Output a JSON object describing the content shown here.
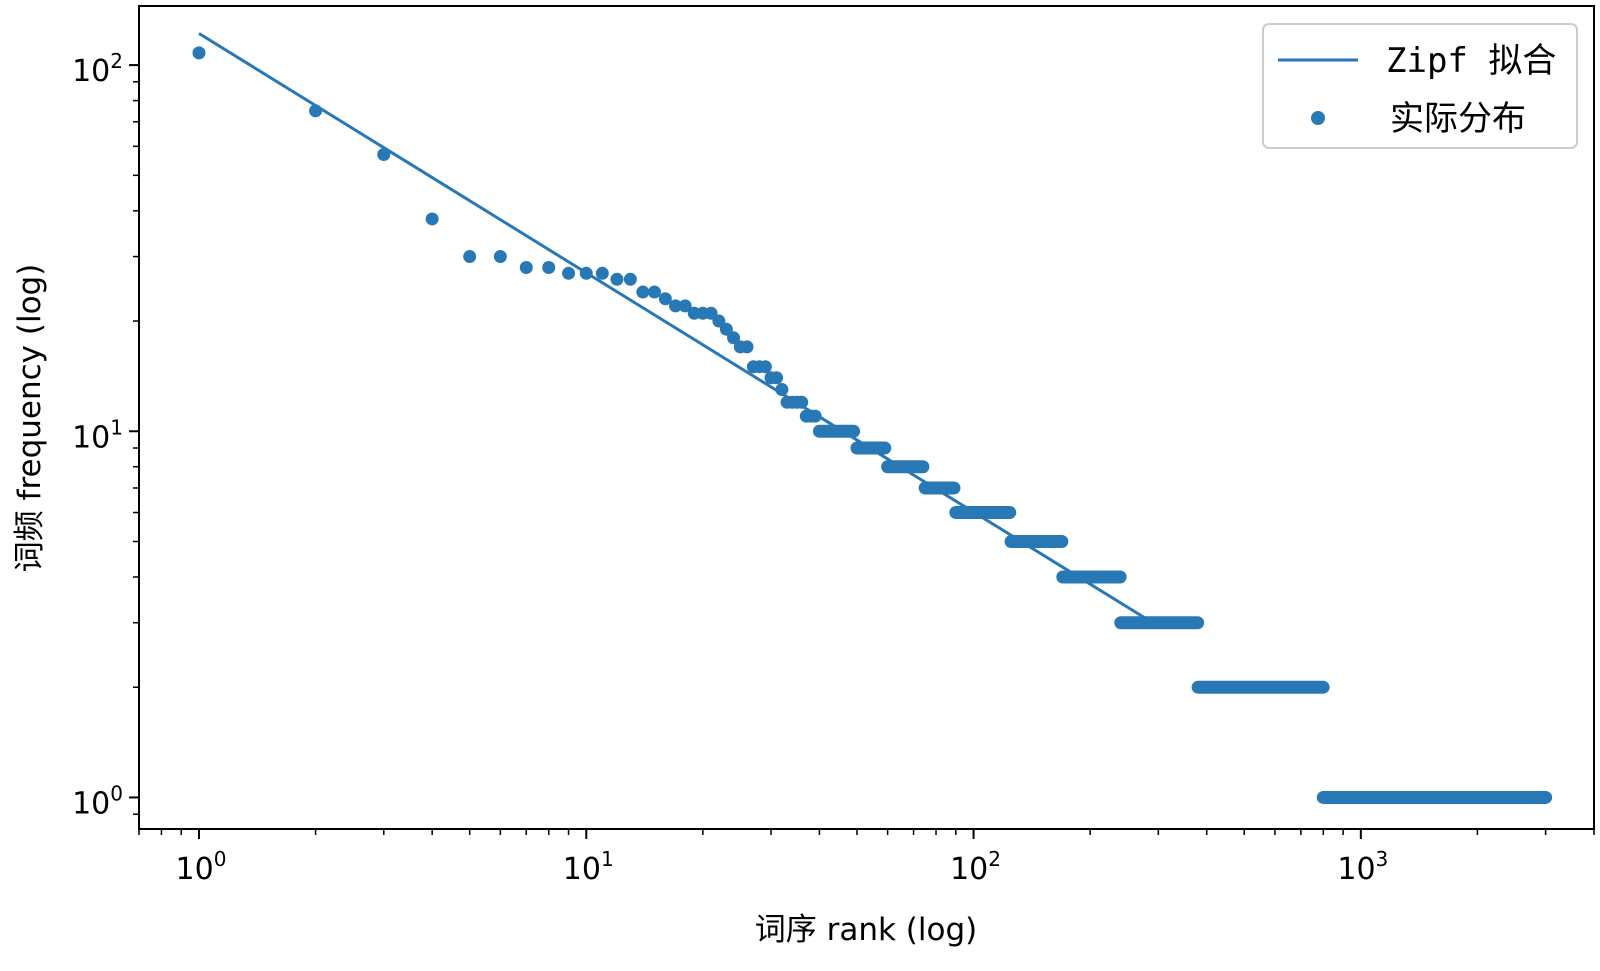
{
  "chart_data": {
    "type": "scatter",
    "xscale": "log",
    "yscale": "log",
    "xlim": [
      0.7,
      4000
    ],
    "ylim": [
      0.82,
      145
    ],
    "xlabel": "词序 rank (log)",
    "ylabel": "词频 frequency (log)",
    "xticks": [
      {
        "base": "10",
        "exp": "0",
        "value": 1
      },
      {
        "base": "10",
        "exp": "1",
        "value": 10
      },
      {
        "base": "10",
        "exp": "2",
        "value": 100
      },
      {
        "base": "10",
        "exp": "3",
        "value": 1000
      }
    ],
    "yticks": [
      {
        "base": "10",
        "exp": "0",
        "value": 1
      },
      {
        "base": "10",
        "exp": "1",
        "value": 10
      },
      {
        "base": "10",
        "exp": "2",
        "value": 100
      }
    ],
    "legend": {
      "placement": "top-right",
      "fit_label": "Zipf 拟合",
      "scatter_label": "实际分布"
    },
    "color": "#2878b5",
    "fit_line": {
      "x": [
        1,
        290
      ],
      "y": [
        122,
        3
      ]
    },
    "points": [
      [
        1,
        108
      ],
      [
        2,
        75
      ],
      [
        3,
        57
      ],
      [
        4,
        38
      ],
      [
        5,
        30
      ],
      [
        6,
        30
      ],
      [
        7,
        28
      ],
      [
        8,
        28
      ],
      [
        9,
        27
      ],
      [
        10,
        27
      ],
      [
        11,
        27
      ],
      [
        12,
        26
      ],
      [
        13,
        26
      ],
      [
        14,
        24
      ],
      [
        15,
        24
      ],
      [
        16,
        23
      ],
      [
        17,
        22
      ],
      [
        18,
        22
      ],
      [
        19,
        21
      ],
      [
        20,
        21
      ],
      [
        21,
        21
      ],
      [
        22,
        20
      ],
      [
        23,
        19
      ],
      [
        24,
        18
      ],
      [
        25,
        17
      ],
      [
        26,
        17
      ],
      [
        27,
        15
      ],
      [
        28,
        15
      ],
      [
        29,
        15
      ],
      [
        30,
        14
      ],
      [
        31,
        14
      ],
      [
        32,
        13
      ],
      [
        33,
        12
      ],
      [
        34,
        12
      ],
      [
        35,
        12
      ],
      [
        36,
        12
      ],
      [
        37,
        11
      ],
      [
        38,
        11
      ],
      [
        39,
        11
      ]
    ],
    "runs": [
      {
        "y": 10,
        "x_start": 40,
        "x_end": 49
      },
      {
        "y": 9,
        "x_start": 50,
        "x_end": 59
      },
      {
        "y": 8,
        "x_start": 60,
        "x_end": 74
      },
      {
        "y": 7,
        "x_start": 75,
        "x_end": 89
      },
      {
        "y": 6,
        "x_start": 90,
        "x_end": 124
      },
      {
        "y": 5,
        "x_start": 125,
        "x_end": 169
      },
      {
        "y": 4,
        "x_start": 170,
        "x_end": 239
      },
      {
        "y": 3,
        "x_start": 240,
        "x_end": 379
      },
      {
        "y": 2,
        "x_start": 380,
        "x_end": 799
      },
      {
        "y": 1,
        "x_start": 800,
        "x_end": 3000
      }
    ]
  }
}
